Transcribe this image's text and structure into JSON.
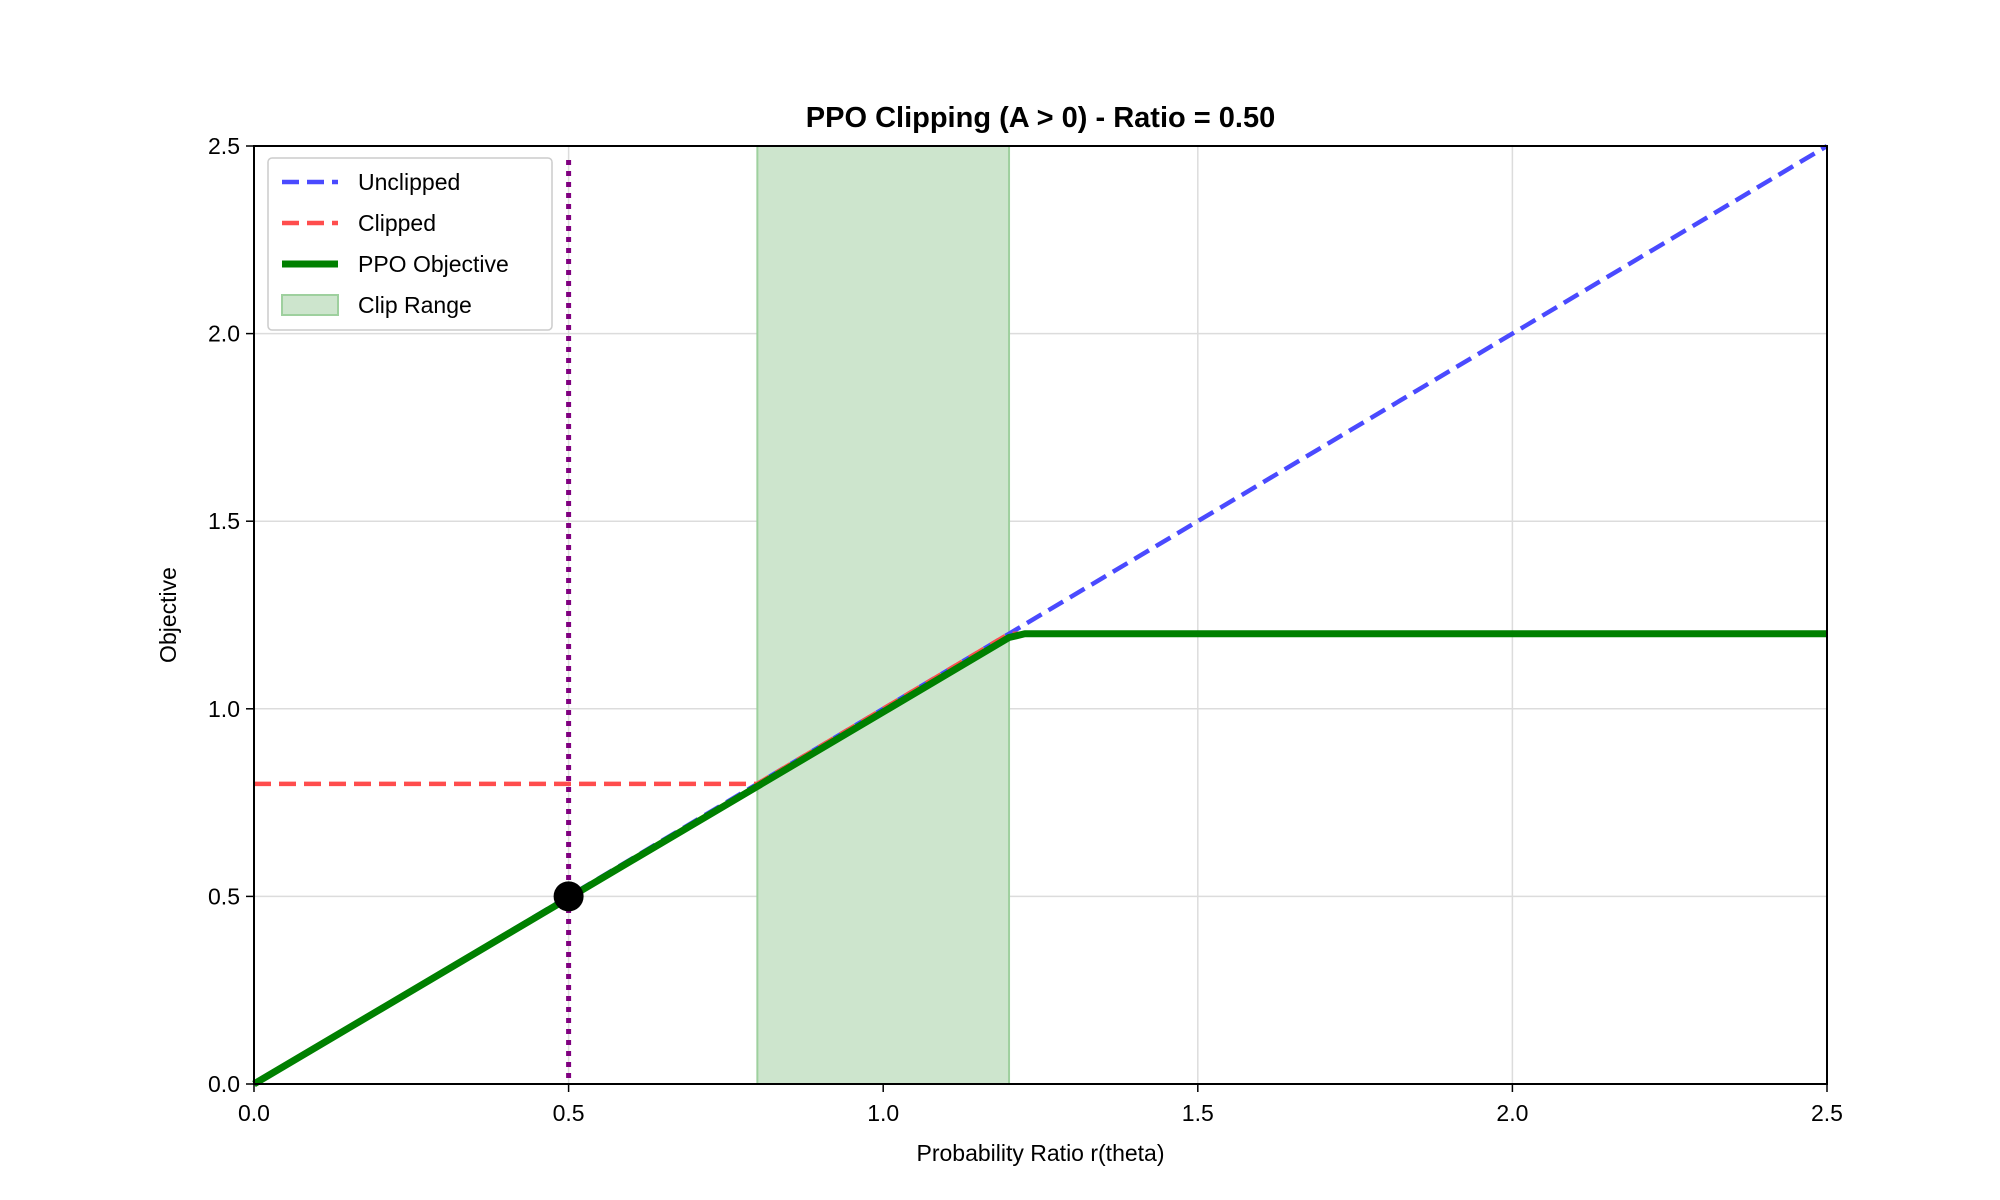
{
  "chart_data": {
    "type": "line",
    "title": "PPO Clipping (A > 0) - Ratio = 0.50",
    "xlabel": "Probability Ratio r(theta)",
    "ylabel": "Objective",
    "xlim": [
      0.0,
      2.5
    ],
    "ylim": [
      0.0,
      2.5
    ],
    "xticks": [
      "0.0",
      "0.5",
      "1.0",
      "1.5",
      "2.0",
      "2.5"
    ],
    "yticks": [
      "0.0",
      "0.5",
      "1.0",
      "1.5",
      "2.0",
      "2.5"
    ],
    "grid": true,
    "legend_position": "top-left",
    "current_ratio": 0.5,
    "current_point": {
      "x": 0.5,
      "y": 0.5
    },
    "clip_range": [
      0.8,
      1.2
    ],
    "series": [
      {
        "name": "Unclipped",
        "style": "dashed",
        "color": "#4a4aff",
        "x": [
          0.0,
          1.2,
          2.5
        ],
        "y": [
          0.0,
          1.2,
          2.5
        ]
      },
      {
        "name": "Clipped",
        "style": "dashed",
        "color": "#ff4d4d",
        "x": [
          0.0,
          0.8,
          1.2,
          2.5
        ],
        "y": [
          0.8,
          0.8,
          1.2,
          1.2
        ]
      },
      {
        "name": "PPO Objective",
        "style": "solid",
        "color": "#008000",
        "x": [
          0.0,
          1.2,
          1.225,
          2.5
        ],
        "y": [
          0.0,
          1.19,
          1.2,
          1.2
        ]
      }
    ],
    "shaded_region": {
      "name": "Clip Range",
      "color": "#a8d8a8"
    },
    "vline_color": "#800080",
    "marker_color": "#000000"
  }
}
